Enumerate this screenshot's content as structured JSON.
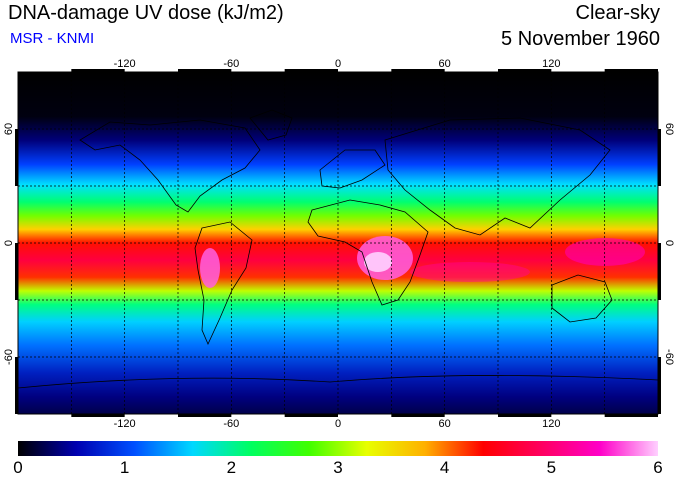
{
  "header": {
    "title": "DNA-damage UV dose (kJ/m2)",
    "source": "MSR - KNMI",
    "condition": "Clear-sky",
    "date": "5 November 1960"
  },
  "axes": {
    "lon_ticks": [
      "-120",
      "-60",
      "0",
      "60",
      "120"
    ],
    "lat_ticks": [
      "60",
      "0",
      "-60"
    ]
  },
  "colorbar": {
    "labels": [
      "0",
      "1",
      "2",
      "3",
      "4",
      "5",
      "6"
    ],
    "min": 0,
    "max": 6,
    "colors": [
      "#000000",
      "#0000b0",
      "#0050ff",
      "#00d8ff",
      "#00ff60",
      "#40ff00",
      "#e8ff00",
      "#ffb000",
      "#ff0000",
      "#ff0060",
      "#ff00c8",
      "#ffd0ff"
    ]
  },
  "colors": {
    "background": "#ffffff",
    "subtitle": "#0000ff",
    "grid": "#000000"
  }
}
